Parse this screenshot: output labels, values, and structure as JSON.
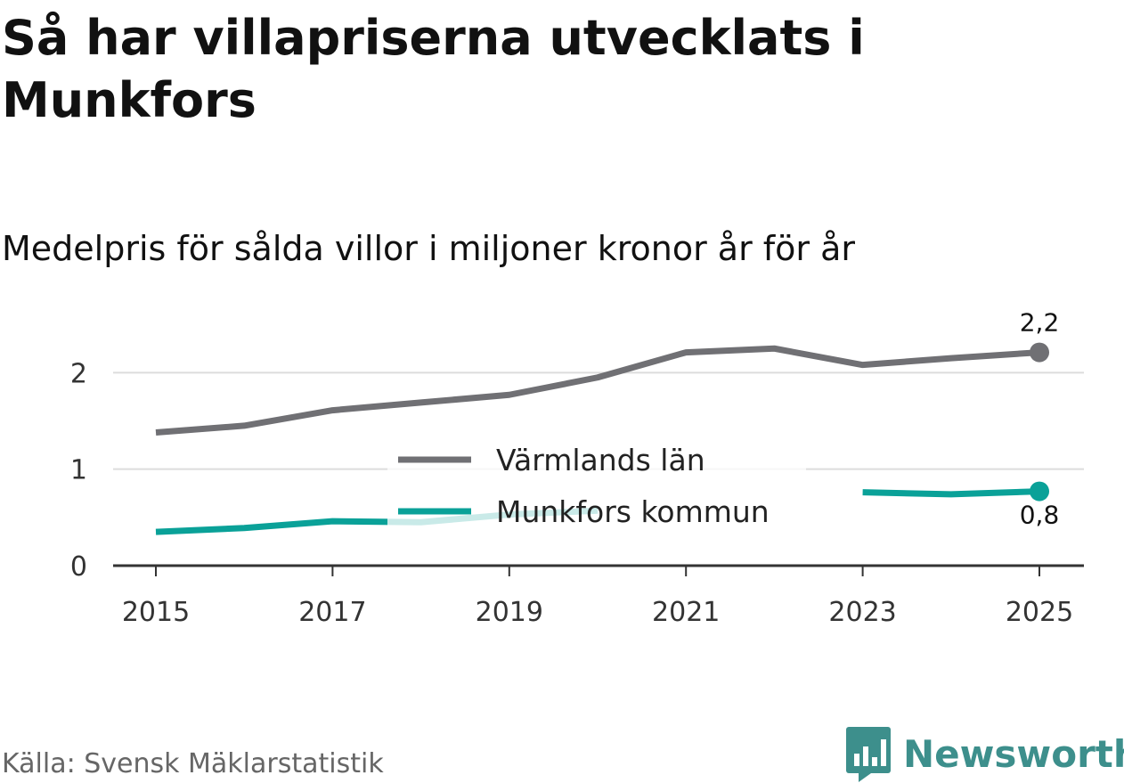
{
  "title": "Så har villapriserna utvecklats i Munkfors",
  "subtitle": "Medelpris för sålda villor i miljoner kronor år för år",
  "source": "Källa: Svensk Mäklarstatistik",
  "brand": {
    "name": "Newsworthy",
    "color": "#3d8f8c"
  },
  "chart_data": {
    "type": "line",
    "x": [
      2015,
      2016,
      2017,
      2018,
      2019,
      2020,
      2021,
      2022,
      2023,
      2024,
      2025
    ],
    "x_ticks": [
      "2015",
      "2017",
      "2019",
      "2021",
      "2023",
      "2025"
    ],
    "y_ticks": [
      "0",
      "1",
      "2"
    ],
    "ylim": [
      0,
      2.4
    ],
    "grid": true,
    "legend_position": "center",
    "series": [
      {
        "name": "Värmlands län",
        "color": "#707074",
        "values": [
          1.38,
          1.45,
          1.61,
          1.69,
          1.77,
          1.95,
          2.21,
          2.25,
          2.08,
          2.15,
          2.21
        ],
        "end_label": "2,2",
        "end_label_position": "above"
      },
      {
        "name": "Munkfors kommun",
        "color": "#0aa198",
        "values": [
          0.35,
          0.39,
          0.46,
          0.45,
          0.53,
          0.57,
          null,
          null,
          0.76,
          0.74,
          0.77
        ],
        "end_label": "0,8",
        "end_label_position": "below"
      }
    ]
  }
}
